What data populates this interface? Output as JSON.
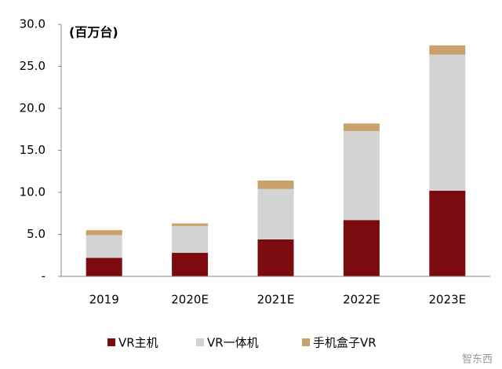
{
  "chart_data": {
    "type": "stacked_bar",
    "unit_label": "(百万台)",
    "categories": [
      "2019",
      "2020E",
      "2021E",
      "2022E",
      "2023E"
    ],
    "series": [
      {
        "name": "VR主机",
        "color": "#7b0b0f",
        "values": [
          2.2,
          2.8,
          4.4,
          6.7,
          10.2
        ]
      },
      {
        "name": "VR一体机",
        "color": "#d3d3d3",
        "values": [
          2.7,
          3.2,
          6.0,
          10.6,
          16.2
        ]
      },
      {
        "name": "手机盒子VR",
        "color": "#c9a16a",
        "values": [
          0.6,
          0.3,
          1.0,
          0.9,
          1.1
        ]
      }
    ],
    "ylim": [
      0,
      30
    ],
    "yticks": [
      {
        "value": 0,
        "label": "-"
      },
      {
        "value": 5,
        "label": "5.0"
      },
      {
        "value": 10,
        "label": "10.0"
      },
      {
        "value": 15,
        "label": "15.0"
      },
      {
        "value": 20,
        "label": "20.0"
      },
      {
        "value": 25,
        "label": "25.0"
      },
      {
        "value": 30,
        "label": "30.0"
      }
    ],
    "legend": "bottom",
    "logo": "智东西"
  }
}
